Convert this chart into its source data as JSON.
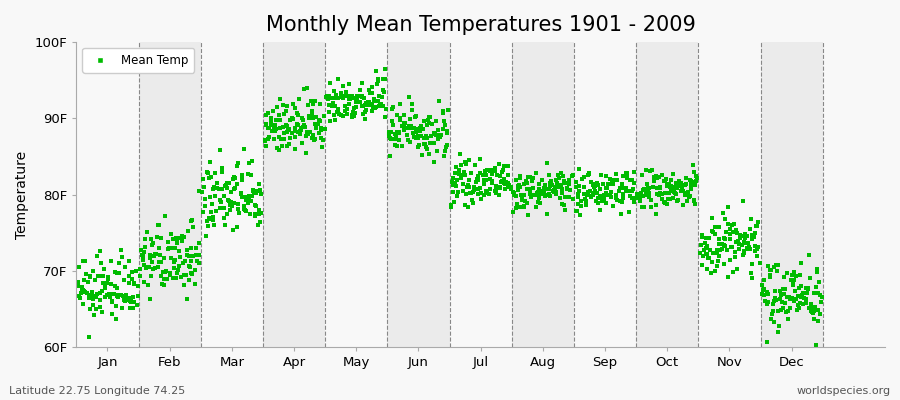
{
  "title": "Monthly Mean Temperatures 1901 - 2009",
  "ylabel": "Temperature",
  "bottom_left": "Latitude 22.75 Longitude 74.25",
  "bottom_right": "worldspecies.org",
  "ylim": [
    60,
    100
  ],
  "yticks": [
    60,
    70,
    80,
    90,
    100
  ],
  "ytick_labels": [
    "60F",
    "70F",
    "80F",
    "90F",
    "100F"
  ],
  "months": [
    "Jan",
    "Feb",
    "Mar",
    "Apr",
    "May",
    "Jun",
    "Jul",
    "Aug",
    "Sep",
    "Oct",
    "Nov",
    "Dec"
  ],
  "month_means": [
    67.5,
    71.5,
    79.5,
    89.0,
    92.5,
    88.5,
    81.5,
    80.5,
    80.5,
    80.5,
    73.5,
    67.0
  ],
  "month_stds": [
    2.0,
    2.2,
    2.5,
    1.8,
    1.5,
    1.8,
    1.2,
    1.2,
    1.3,
    1.4,
    2.2,
    2.2
  ],
  "n_years": 109,
  "dot_color": "#00bb00",
  "background_color": "#f8f8f8",
  "band_color_light": "#f8f8f8",
  "band_color_dark": "#ebebeb",
  "legend_label": "Mean Temp",
  "marker": "s",
  "marker_size": 2.5,
  "title_fontsize": 15,
  "axis_fontsize": 10,
  "tick_fontsize": 9.5
}
